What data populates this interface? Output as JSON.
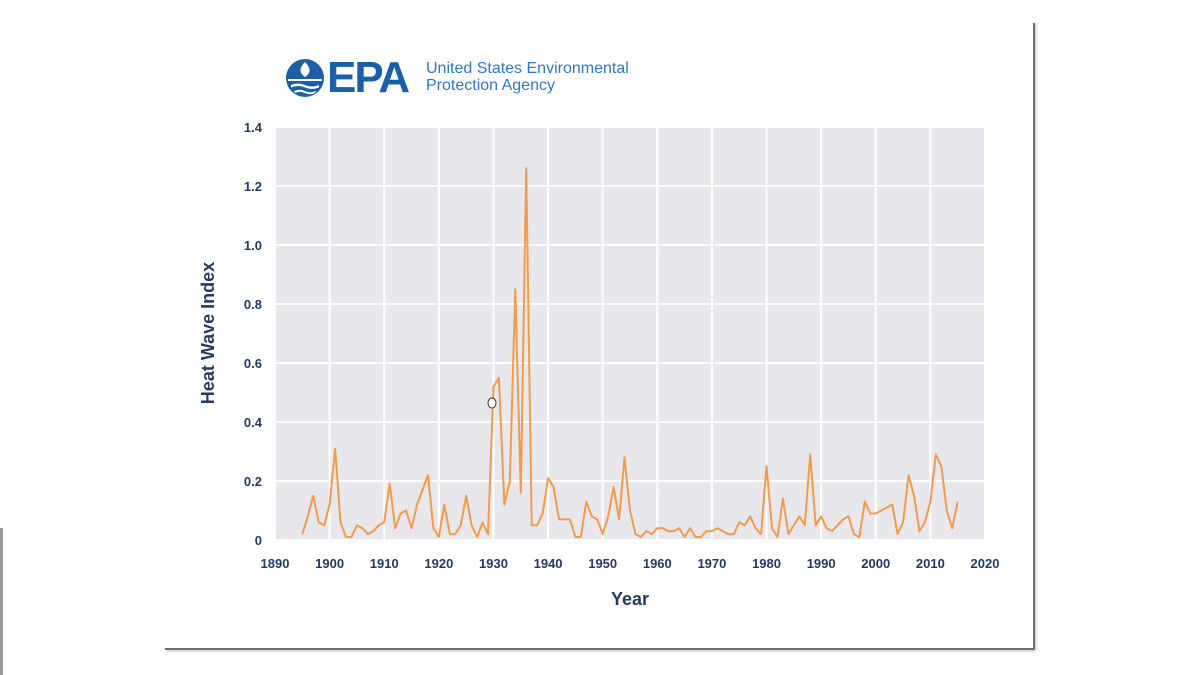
{
  "logo": {
    "letters": "EPA",
    "line1": "United States Environmental",
    "line2": "Protection Agency",
    "brand_color": "#1b5fa6",
    "text_color": "#2e79c7"
  },
  "chart_data": {
    "type": "line",
    "title": "",
    "xlabel": "Year",
    "ylabel": "Heat Wave Index",
    "xlim": [
      1890,
      2020
    ],
    "ylim": [
      0,
      1.4
    ],
    "xticks": [
      "1890",
      "1900",
      "1910",
      "1920",
      "1930",
      "1940",
      "1950",
      "1960",
      "1970",
      "1980",
      "1990",
      "2000",
      "2010",
      "2020"
    ],
    "yticks": [
      "0",
      "0.2",
      "0.4",
      "0.6",
      "0.8",
      "1.0",
      "1.2",
      "1.4"
    ],
    "grid": true,
    "line_color": "#f29b4c",
    "series": [
      {
        "name": "Heat Wave Index",
        "x": [
          1895,
          1896,
          1897,
          1898,
          1899,
          1900,
          1901,
          1902,
          1903,
          1904,
          1905,
          1906,
          1907,
          1908,
          1909,
          1910,
          1911,
          1912,
          1913,
          1914,
          1915,
          1916,
          1917,
          1918,
          1919,
          1920,
          1921,
          1922,
          1923,
          1924,
          1925,
          1926,
          1927,
          1928,
          1929,
          1930,
          1931,
          1932,
          1933,
          1934,
          1935,
          1936,
          1937,
          1938,
          1939,
          1940,
          1941,
          1942,
          1943,
          1944,
          1945,
          1946,
          1947,
          1948,
          1949,
          1950,
          1951,
          1952,
          1953,
          1954,
          1955,
          1956,
          1957,
          1958,
          1959,
          1960,
          1961,
          1962,
          1963,
          1964,
          1965,
          1966,
          1967,
          1968,
          1969,
          1970,
          1971,
          1972,
          1973,
          1974,
          1975,
          1976,
          1977,
          1978,
          1979,
          1980,
          1981,
          1982,
          1983,
          1984,
          1985,
          1986,
          1987,
          1988,
          1989,
          1990,
          1991,
          1992,
          1993,
          1994,
          1995,
          1996,
          1997,
          1998,
          1999,
          2000,
          2001,
          2002,
          2003,
          2004,
          2005,
          2006,
          2007,
          2008,
          2009,
          2010,
          2011,
          2012,
          2013,
          2014,
          2015
        ],
        "values": [
          0.02,
          0.08,
          0.15,
          0.06,
          0.05,
          0.12,
          0.31,
          0.06,
          0.01,
          0.01,
          0.05,
          0.04,
          0.02,
          0.03,
          0.05,
          0.06,
          0.19,
          0.04,
          0.09,
          0.1,
          0.04,
          0.12,
          0.17,
          0.22,
          0.04,
          0.01,
          0.12,
          0.02,
          0.02,
          0.05,
          0.15,
          0.05,
          0.01,
          0.06,
          0.02,
          0.52,
          0.55,
          0.12,
          0.2,
          0.85,
          0.16,
          1.26,
          0.05,
          0.05,
          0.09,
          0.21,
          0.18,
          0.07,
          0.07,
          0.07,
          0.01,
          0.01,
          0.13,
          0.08,
          0.07,
          0.02,
          0.08,
          0.18,
          0.07,
          0.28,
          0.1,
          0.02,
          0.01,
          0.03,
          0.02,
          0.04,
          0.04,
          0.03,
          0.03,
          0.04,
          0.01,
          0.04,
          0.01,
          0.01,
          0.03,
          0.03,
          0.04,
          0.03,
          0.02,
          0.02,
          0.06,
          0.05,
          0.08,
          0.04,
          0.02,
          0.25,
          0.04,
          0.01,
          0.14,
          0.02,
          0.05,
          0.08,
          0.05,
          0.29,
          0.05,
          0.08,
          0.04,
          0.03,
          0.05,
          0.07,
          0.08,
          0.02,
          0.01,
          0.13,
          0.09,
          0.09,
          0.1,
          0.11,
          0.12,
          0.02,
          0.06,
          0.22,
          0.15,
          0.03,
          0.06,
          0.13,
          0.29,
          0.25,
          0.1,
          0.04,
          0.13
        ]
      }
    ]
  }
}
